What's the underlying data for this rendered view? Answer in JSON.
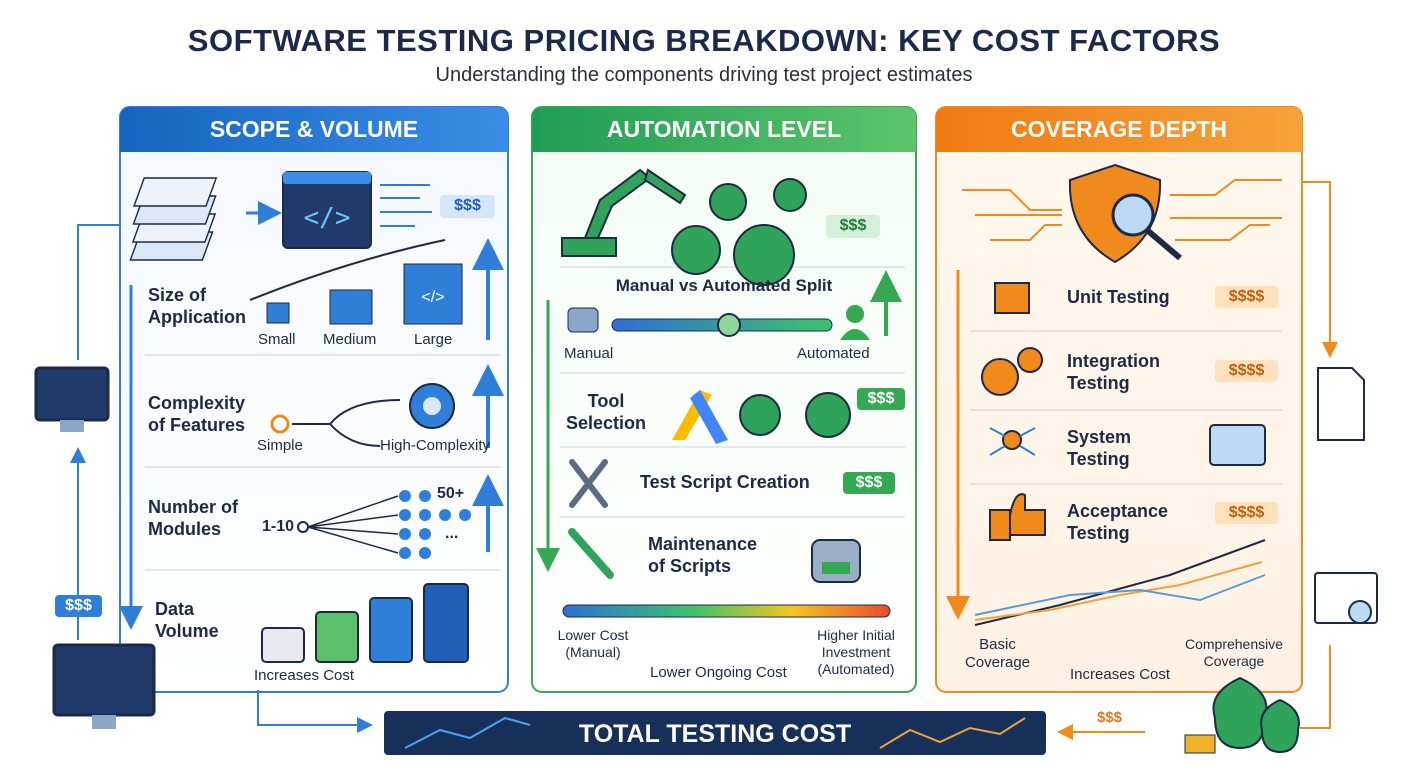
{
  "header": {
    "title": "SOFTWARE TESTING PRICING BREAKDOWN: KEY COST FACTORS",
    "subtitle": "Understanding the components driving test project estimates"
  },
  "panels": [
    {
      "title": "SCOPE & VOLUME",
      "price": "$$$",
      "items": [
        {
          "label": "Size of Application",
          "scale": [
            "Small",
            "Medium",
            "Large"
          ]
        },
        {
          "label": "Complexity of Features",
          "scale": [
            "Simple",
            "High-Complexity"
          ]
        },
        {
          "label": "Number of Modules",
          "scale": [
            "1-10",
            "50+",
            "..."
          ]
        },
        {
          "label": "Data Volume"
        }
      ],
      "footer": "Increases Cost"
    },
    {
      "title": "AUTOMATION LEVEL",
      "price": "$$$",
      "items": [
        {
          "label": "Manual vs Automated Split",
          "scale": [
            "Manual",
            "Automated"
          ]
        },
        {
          "label": "Tool Selection",
          "price": "$$$"
        },
        {
          "label": "Test Script Creation",
          "price": "$$$"
        },
        {
          "label": "Maintenance of Scripts"
        }
      ],
      "footer": {
        "left": "Lower Cost (Manual)",
        "middle": "Lower Ongoing Cost",
        "right": "Higher Initial Investment (Automated)"
      }
    },
    {
      "title": "COVERAGE DEPTH",
      "items": [
        {
          "label": "Unit Testing",
          "price": "$$$$"
        },
        {
          "label": "Integration Testing",
          "price": "$$$$"
        },
        {
          "label": "System Testing"
        },
        {
          "label": "Acceptance Testing",
          "price": "$$$$"
        }
      ],
      "footer": {
        "left": "Basic Coverage",
        "middle": "Increases Cost",
        "right": "Comprehensive Coverage"
      }
    }
  ],
  "side": {
    "left_price": "$$$",
    "right_price": "$$$"
  },
  "total": "TOTAL TESTING COST"
}
